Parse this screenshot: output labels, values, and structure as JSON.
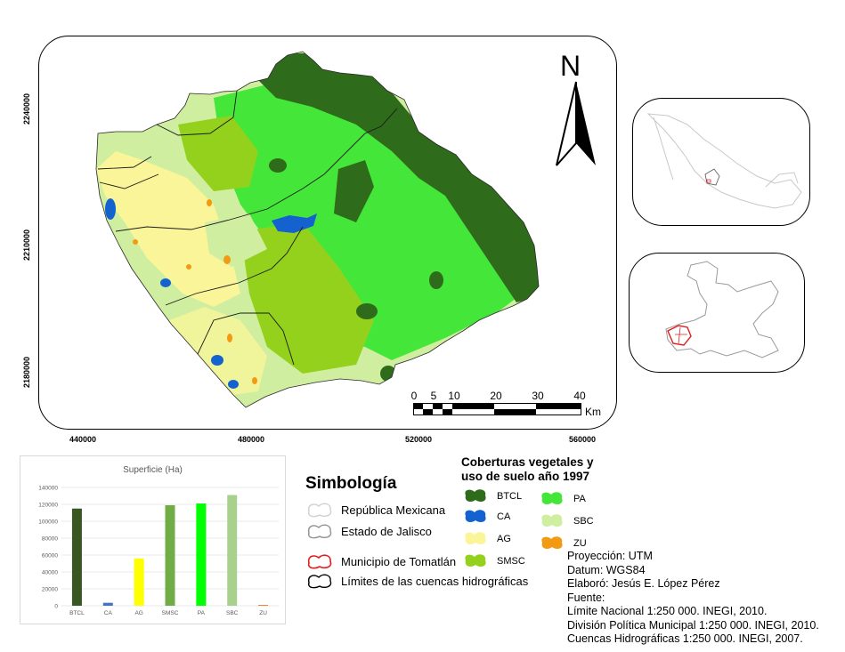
{
  "main_map": {
    "y_ticks": [
      "2240000",
      "2210000",
      "2180000"
    ],
    "x_ticks": [
      "440000",
      "480000",
      "520000",
      "560000"
    ],
    "north_label": "N",
    "scale_labels": [
      "0",
      "5",
      "10",
      "20",
      "30",
      "40"
    ],
    "scale_unit": "Km"
  },
  "chart_data": {
    "type": "bar",
    "title": "Superficie (Ha)",
    "categories": [
      "BTCL",
      "CA",
      "AG",
      "SMSC",
      "PA",
      "SBC",
      "ZU"
    ],
    "values": [
      115000,
      3500,
      56000,
      119000,
      121000,
      131000,
      1000
    ],
    "colors": [
      "#385723",
      "#4472c4",
      "#ffff00",
      "#70ad47",
      "#00ff00",
      "#a9d18e",
      "#ed7d31"
    ],
    "ylim": [
      0,
      140000
    ],
    "y_ticks": [
      "0",
      "20000",
      "40000",
      "60000",
      "80000",
      "100000",
      "120000",
      "140000"
    ]
  },
  "simbologia": {
    "title": "Simbología",
    "items": [
      {
        "label": "República Mexicana",
        "stroke": "#d0d0d0"
      },
      {
        "label": "Estado de Jalisco",
        "stroke": "#909090"
      },
      {
        "label": "Municipio de Tomatlán",
        "stroke": "#e11d1d"
      },
      {
        "label": "Límites de las cuencas hidrográficas",
        "stroke": "#000000"
      }
    ]
  },
  "coberturas": {
    "title_line1": "Coberturas vegetales y",
    "title_line2": "uso de suelo año 1997",
    "items": [
      {
        "code": "BTCL",
        "color": "#2e6b1a"
      },
      {
        "code": "CA",
        "color": "#1462d0"
      },
      {
        "code": "AG",
        "color": "#fbf59a"
      },
      {
        "code": "SMSC",
        "color": "#93d11c"
      },
      {
        "code": "PA",
        "color": "#45e63a"
      },
      {
        "code": "SBC",
        "color": "#cfeea0"
      },
      {
        "code": "ZU",
        "color": "#f29a12"
      }
    ]
  },
  "metadata": {
    "lines": [
      "Proyección: UTM",
      "Datum: WGS84",
      "Elaboró: Jesús E. López Pérez",
      "Fuente:",
      "Límite Nacional 1:250 000. INEGI, 2010.",
      "División Política Municipal 1:250 000. INEGI, 2010.",
      "Cuencas Hidrográficas 1:250 000. INEGI, 2007."
    ]
  }
}
